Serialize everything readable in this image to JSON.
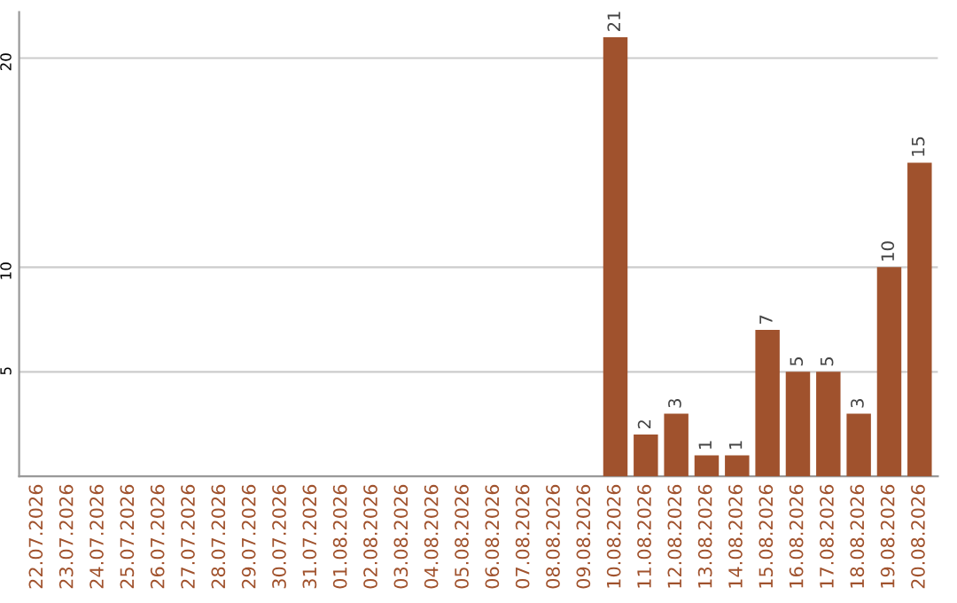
{
  "chart_data": {
    "type": "bar",
    "categories": [
      "22.07.2026",
      "23.07.2026",
      "24.07.2026",
      "25.07.2026",
      "26.07.2026",
      "27.07.2026",
      "28.07.2026",
      "29.07.2026",
      "30.07.2026",
      "31.07.2026",
      "01.08.2026",
      "02.08.2026",
      "03.08.2026",
      "04.08.2026",
      "05.08.2026",
      "06.08.2026",
      "07.08.2026",
      "08.08.2026",
      "09.08.2026",
      "10.08.2026",
      "11.08.2026",
      "12.08.2026",
      "13.08.2026",
      "14.08.2026",
      "15.08.2026",
      "16.08.2026",
      "17.08.2026",
      "18.08.2026",
      "19.08.2026",
      "20.08.2026"
    ],
    "values": [
      0,
      0,
      0,
      0,
      0,
      0,
      0,
      0,
      0,
      0,
      0,
      0,
      0,
      0,
      0,
      0,
      0,
      0,
      0,
      21,
      2,
      3,
      1,
      1,
      7,
      5,
      5,
      3,
      10,
      15
    ],
    "value_labels": [
      null,
      null,
      null,
      null,
      null,
      null,
      null,
      null,
      null,
      null,
      null,
      null,
      null,
      null,
      null,
      null,
      null,
      null,
      null,
      "21",
      "2",
      "3",
      "1",
      "1",
      "7",
      "5",
      "5",
      "3",
      "10",
      "15"
    ],
    "color": "#a0522d",
    "ylim": [
      0,
      22.2
    ],
    "yticks": [
      5,
      10,
      20
    ],
    "grid": "y"
  }
}
